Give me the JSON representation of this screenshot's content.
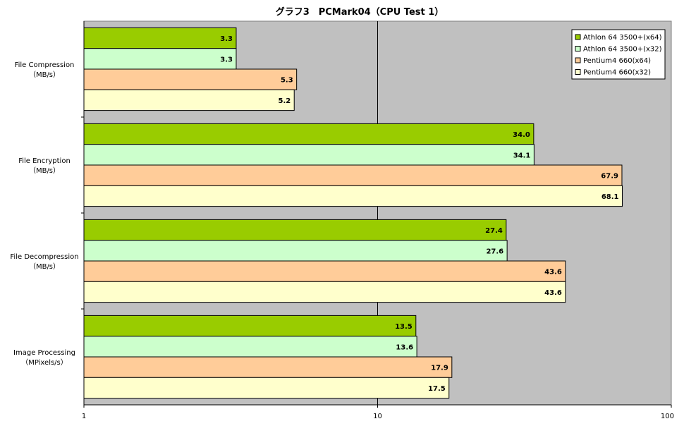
{
  "chart_data": {
    "type": "bar",
    "orientation": "horizontal",
    "title": "グラフ3　PCMark04（CPU Test 1）",
    "x_scale": "log",
    "xlim": [
      1,
      100
    ],
    "x_ticks": [
      "1",
      "10",
      "100"
    ],
    "grid": "vertical major gridlines",
    "legend_position": "top-right",
    "categories": [
      [
        "File Compression",
        "（MB/s）"
      ],
      [
        "File Encryption",
        "（MB/s）"
      ],
      [
        "File Decompression",
        "（MB/s）"
      ],
      [
        "Image Processing",
        "（MPixels/s）"
      ]
    ],
    "series": [
      {
        "name": "Athlon 64 3500+(x64)",
        "color": "#99cc00",
        "values": [
          3.3,
          34.0,
          27.4,
          13.5
        ],
        "labels": [
          "3.3",
          "34.0",
          "27.4",
          "13.5"
        ]
      },
      {
        "name": "Athlon 64 3500+(x32)",
        "color": "#ccffcc",
        "values": [
          3.3,
          34.1,
          27.6,
          13.6
        ],
        "labels": [
          "3.3",
          "34.1",
          "27.6",
          "13.6"
        ]
      },
      {
        "name": "Pentium4 660(x64)",
        "color": "#ffcc99",
        "values": [
          5.3,
          67.9,
          43.6,
          17.9
        ],
        "labels": [
          "5.3",
          "67.9",
          "43.6",
          "17.9"
        ]
      },
      {
        "name": "Pentium4 660(x32)",
        "color": "#ffffcc",
        "values": [
          5.2,
          68.1,
          43.6,
          17.5
        ],
        "labels": [
          "5.2",
          "68.1",
          "43.6",
          "17.5"
        ]
      }
    ],
    "plot_background": "#c0c0c0"
  }
}
